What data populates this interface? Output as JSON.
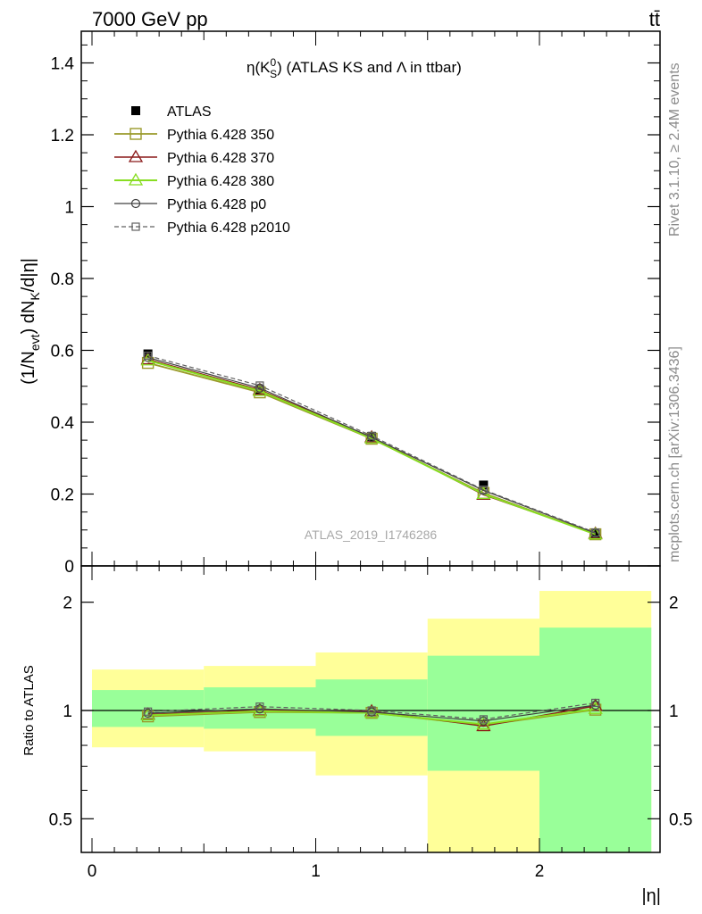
{
  "header": {
    "left": "7000 GeV pp",
    "right": "tt̄"
  },
  "side": {
    "rivet": "Rivet 3.1.10, ≥ 2.4M events",
    "mcplots": "mcplots.cern.ch [arXiv:1306.3436]"
  },
  "plot_title": "η(K⁰S) (ATLAS KS and Λ in ttbar)",
  "watermark": "ATLAS_2019_I1746286",
  "colors": {
    "atlas": "#000000",
    "p350": "#9a9a2a",
    "p370": "#8b1a1a",
    "p380": "#88dd22",
    "p0": "#404040",
    "p2010": "#606060",
    "band_inner": "#99ff99",
    "band_outer": "#ffff99"
  },
  "chart_data": [
    {
      "type": "line",
      "panel": "main",
      "xlabel": "|η|",
      "ylabel": "(1/N_evt) dN_K/d|η|",
      "xlim": [
        -0.05,
        2.55
      ],
      "ylim": [
        0,
        1.48
      ],
      "x": [
        0.25,
        0.75,
        1.25,
        1.75,
        2.25
      ],
      "y_ticks": [
        "0",
        "0.2",
        "0.4",
        "0.6",
        "0.8",
        "1",
        "1.2",
        "1.4"
      ],
      "x_ticks": [
        "0",
        "1",
        "2"
      ],
      "legend_position": "top-left",
      "series": [
        {
          "name": "ATLAS",
          "values": [
            0.59,
            0.49,
            0.36,
            0.225,
            0.088
          ],
          "marker": "filled-square"
        },
        {
          "name": "Pythia 6.428 350",
          "values": [
            0.565,
            0.483,
            0.354,
            0.203,
            0.088
          ],
          "marker": "open-square"
        },
        {
          "name": "Pythia 6.428 370",
          "values": [
            0.575,
            0.49,
            0.358,
            0.198,
            0.09
          ],
          "marker": "open-triangle"
        },
        {
          "name": "Pythia 6.428 380",
          "values": [
            0.572,
            0.487,
            0.355,
            0.2,
            0.088
          ],
          "marker": "open-triangle"
        },
        {
          "name": "Pythia 6.428 p0",
          "values": [
            0.58,
            0.495,
            0.358,
            0.21,
            0.091
          ],
          "marker": "open-circle"
        },
        {
          "name": "Pythia 6.428 p2010",
          "values": [
            0.585,
            0.502,
            0.362,
            0.212,
            0.093
          ],
          "marker": "open-square-small"
        }
      ]
    },
    {
      "type": "line",
      "panel": "ratio",
      "xlabel": "|η|",
      "ylabel": "Ratio to ATLAS",
      "ylim": [
        0.33,
        2.3
      ],
      "log_scale_y": true,
      "y_ticks": [
        "0.5",
        "1",
        "2"
      ],
      "bins": [
        [
          0,
          0.5
        ],
        [
          0.5,
          1
        ],
        [
          1,
          1.5
        ],
        [
          1.5,
          2
        ],
        [
          2,
          2.5
        ]
      ],
      "band_inner": [
        [
          0.9,
          1.14
        ],
        [
          0.89,
          1.16
        ],
        [
          0.85,
          1.22
        ],
        [
          0.68,
          1.42
        ],
        [
          0.33,
          1.7
        ]
      ],
      "band_outer": [
        [
          0.79,
          1.3
        ],
        [
          0.77,
          1.33
        ],
        [
          0.66,
          1.45
        ],
        [
          0.33,
          1.8
        ],
        [
          0.33,
          2.15
        ]
      ],
      "x": [
        0.25,
        0.75,
        1.25,
        1.75,
        2.25
      ],
      "series": [
        {
          "name": "Pythia 6.428 350",
          "values": [
            0.963,
            0.99,
            0.985,
            0.91,
            1.005
          ]
        },
        {
          "name": "Pythia 6.428 370",
          "values": [
            0.975,
            1.0,
            0.995,
            0.905,
            1.03
          ]
        },
        {
          "name": "Pythia 6.428 380",
          "values": [
            0.97,
            0.995,
            0.985,
            0.915,
            1.01
          ]
        },
        {
          "name": "Pythia 6.428 p0",
          "values": [
            0.983,
            1.01,
            0.99,
            0.935,
            1.035
          ]
        },
        {
          "name": "Pythia 6.428 p2010",
          "values": [
            0.993,
            1.025,
            1.0,
            0.945,
            1.05
          ]
        }
      ]
    }
  ]
}
